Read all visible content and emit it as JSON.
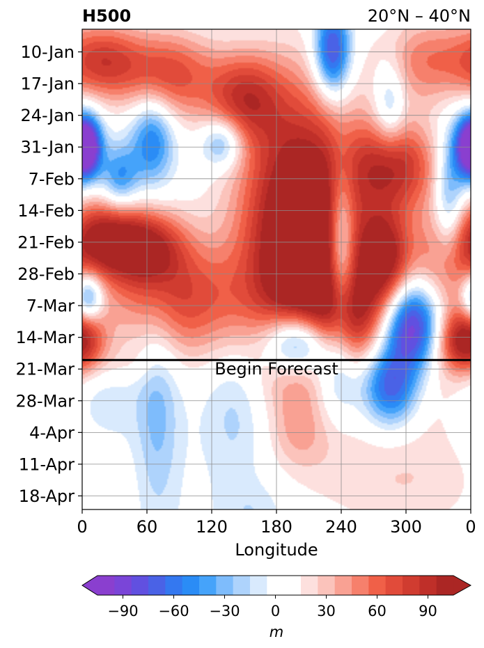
{
  "chart_data": {
    "type": "heatmap",
    "title_left": "H500",
    "title_right": "20°N – 40°N",
    "xlabel": "Longitude",
    "ylabel": "",
    "x_ticks": [
      "0",
      "60",
      "120",
      "180",
      "240",
      "300",
      "0"
    ],
    "x_tick_values": [
      0,
      60,
      120,
      180,
      240,
      300,
      360
    ],
    "xlim": [
      0,
      360
    ],
    "y_ticks": [
      "10-Jan",
      "17-Jan",
      "24-Jan",
      "31-Jan",
      "7-Feb",
      "14-Feb",
      "21-Feb",
      "28-Feb",
      "7-Mar",
      "14-Mar",
      "21-Mar",
      "28-Mar",
      "4-Apr",
      "11-Apr",
      "18-Apr"
    ],
    "ylim_dates": [
      "5-Jan",
      "21-Apr"
    ],
    "grid": true,
    "forecast_line_date": "19-Mar",
    "forecast_label": "Begin Forecast",
    "colorbar": {
      "label": "m",
      "ticks": [
        "−90",
        "−60",
        "−30",
        "0",
        "30",
        "60",
        "90"
      ],
      "tick_values": [
        -90,
        -60,
        -30,
        0,
        30,
        60,
        90
      ],
      "range": [
        -105,
        105
      ],
      "step": 10,
      "extend": "both",
      "colors": [
        "#8a3fcf",
        "#7a45d8",
        "#6150e0",
        "#4a62e6",
        "#3478f0",
        "#2a8cf6",
        "#45a3fa",
        "#7ebcfc",
        "#aed3fc",
        "#d9eafd",
        "#ffffff",
        "#ffffff",
        "#fde0de",
        "#fbc3bb",
        "#f9a193",
        "#f6806c",
        "#f06048",
        "#e14b3a",
        "#d03c30",
        "#bf2f29",
        "#ab2624"
      ]
    },
    "anomalies": [
      {
        "lon": 205,
        "date": "25-Feb",
        "value": 110,
        "spread_lon": 35,
        "spread_days": 22
      },
      {
        "lon": 205,
        "date": "12-Feb",
        "value": 50,
        "spread_lon": 50,
        "spread_days": 20
      },
      {
        "lon": 60,
        "date": "22-Feb",
        "value": 90,
        "spread_lon": 25,
        "spread_days": 6
      },
      {
        "lon": 20,
        "date": "20-Feb",
        "value": 80,
        "spread_lon": 22,
        "spread_days": 6
      },
      {
        "lon": 90,
        "date": "6-Mar",
        "value": 70,
        "spread_lon": 45,
        "spread_days": 9
      },
      {
        "lon": 340,
        "date": "26-Feb",
        "value": 60,
        "spread_lon": 24,
        "spread_days": 10
      },
      {
        "lon": 280,
        "date": "25-Feb",
        "value": 95,
        "spread_lon": 18,
        "spread_days": 8
      },
      {
        "lon": 290,
        "date": "4-Feb",
        "value": 80,
        "spread_lon": 28,
        "spread_days": 7
      },
      {
        "lon": 355,
        "date": "15-Mar",
        "value": 100,
        "spread_lon": 18,
        "spread_days": 5
      },
      {
        "lon": 80,
        "date": "15-Jan",
        "value": 70,
        "spread_lon": 30,
        "spread_days": 7
      },
      {
        "lon": 150,
        "date": "20-Jan",
        "value": 70,
        "spread_lon": 25,
        "spread_days": 7
      },
      {
        "lon": 20,
        "date": "12-Jan",
        "value": 70,
        "spread_lon": 25,
        "spread_days": 6
      },
      {
        "lon": 250,
        "date": "10-Mar",
        "value": 60,
        "spread_lon": 25,
        "spread_days": 7
      },
      {
        "lon": 320,
        "date": "12-Jan",
        "value": 50,
        "spread_lon": 30,
        "spread_days": 7
      },
      {
        "lon": 200,
        "date": "15-Mar",
        "value": -110,
        "spread_lon": 22,
        "spread_days": 5
      },
      {
        "lon": 305,
        "date": "11-Mar",
        "value": -110,
        "spread_lon": 20,
        "spread_days": 7
      },
      {
        "lon": 232,
        "date": "10-Jan",
        "value": -95,
        "spread_lon": 12,
        "spread_days": 7
      },
      {
        "lon": 5,
        "date": "31-Jan",
        "value": -90,
        "spread_lon": 10,
        "spread_days": 5
      },
      {
        "lon": 358,
        "date": "31-Jan",
        "value": -80,
        "spread_lon": 10,
        "spread_days": 5
      },
      {
        "lon": 240,
        "date": "22-Feb",
        "value": -75,
        "spread_lon": 9,
        "spread_days": 13
      },
      {
        "lon": 5,
        "date": "5-Mar",
        "value": -80,
        "spread_lon": 10,
        "spread_days": 4
      },
      {
        "lon": 65,
        "date": "29-Jan",
        "value": -60,
        "spread_lon": 14,
        "spread_days": 7
      },
      {
        "lon": 130,
        "date": "30-Jan",
        "value": -55,
        "spread_lon": 14,
        "spread_days": 4
      },
      {
        "lon": 35,
        "date": "7-Feb",
        "value": -50,
        "spread_lon": 12,
        "spread_days": 5
      },
      {
        "lon": 340,
        "date": "12-Feb",
        "value": -55,
        "spread_lon": 10,
        "spread_days": 10
      },
      {
        "lon": 285,
        "date": "22-Jan",
        "value": -40,
        "spread_lon": 10,
        "spread_days": 7
      },
      {
        "lon": 285,
        "date": "25-Mar",
        "value": -75,
        "spread_lon": 18,
        "spread_days": 6
      },
      {
        "lon": 235,
        "date": "23-Mar",
        "value": -45,
        "spread_lon": 16,
        "spread_days": 7
      },
      {
        "lon": 70,
        "date": "29-Mar",
        "value": -30,
        "spread_lon": 14,
        "spread_days": 18
      },
      {
        "lon": 145,
        "date": "29-Mar",
        "value": -25,
        "spread_lon": 22,
        "spread_days": 12
      },
      {
        "lon": 160,
        "date": "22-Apr",
        "value": -15,
        "spread_lon": 22,
        "spread_days": 5
      },
      {
        "lon": 20,
        "date": "27-Mar",
        "value": -15,
        "spread_lon": 25,
        "spread_days": 8
      },
      {
        "lon": 300,
        "date": "14-Apr",
        "value": 25,
        "spread_lon": 55,
        "spread_days": 10
      },
      {
        "lon": 200,
        "date": "5-Apr",
        "value": 15,
        "spread_lon": 18,
        "spread_days": 5
      },
      {
        "lon": 330,
        "date": "25-Mar",
        "value": 15,
        "spread_lon": 20,
        "spread_days": 7
      },
      {
        "lon": 40,
        "date": "20-Mar",
        "value": 12,
        "spread_lon": 20,
        "spread_days": 3
      }
    ]
  }
}
